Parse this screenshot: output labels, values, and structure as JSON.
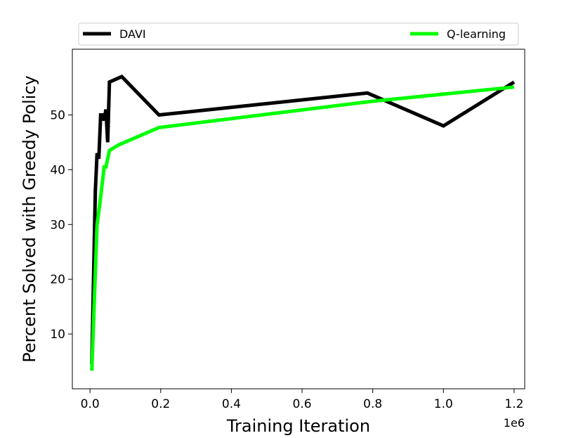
{
  "chart_data": {
    "type": "line",
    "xlabel": "Training Iteration",
    "ylabel": "Percent Solved with Greedy Policy",
    "x_offset_label": "1e6",
    "xlim": [
      -0.05,
      1.23
    ],
    "ylim": [
      0,
      62
    ],
    "xticks": [
      0.0,
      0.2,
      0.4,
      0.6,
      0.8,
      1.0,
      1.2
    ],
    "xtick_labels": [
      "0.0",
      "0.2",
      "0.4",
      "0.6",
      "0.8",
      "1.0",
      "1.2"
    ],
    "yticks": [
      10,
      20,
      30,
      40,
      50
    ],
    "ytick_labels": [
      "10",
      "20",
      "30",
      "40",
      "50"
    ],
    "legend_position": "top (above plot, expanded)",
    "grid": false,
    "series": [
      {
        "name": "DAVI",
        "color": "#000000",
        "points": [
          [
            0.005,
            4.5
          ],
          [
            0.015,
            36
          ],
          [
            0.02,
            43
          ],
          [
            0.025,
            42
          ],
          [
            0.03,
            50
          ],
          [
            0.035,
            50
          ],
          [
            0.04,
            49
          ],
          [
            0.045,
            51
          ],
          [
            0.05,
            45
          ],
          [
            0.055,
            56
          ],
          [
            0.09,
            57
          ],
          [
            0.195,
            50
          ],
          [
            0.785,
            54
          ],
          [
            1.0,
            48
          ],
          [
            1.2,
            56
          ]
        ]
      },
      {
        "name": "Q-learning",
        "color": "#00ff00",
        "points": [
          [
            0.005,
            3.3
          ],
          [
            0.02,
            30
          ],
          [
            0.03,
            35
          ],
          [
            0.04,
            40.5
          ],
          [
            0.045,
            40.5
          ],
          [
            0.055,
            43.5
          ],
          [
            0.08,
            44.5
          ],
          [
            0.195,
            47.7
          ],
          [
            0.8,
            52.5
          ],
          [
            1.2,
            55.1
          ]
        ]
      }
    ]
  }
}
